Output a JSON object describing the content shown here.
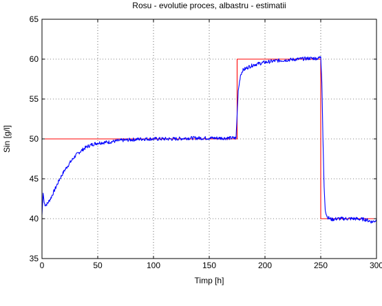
{
  "chart_data": {
    "type": "line",
    "title": "Rosu - evolutie proces, albastru - estimatii",
    "xlabel": "Timp [h]",
    "ylabel": "Sin [g/l]",
    "xlim": [
      0,
      300
    ],
    "ylim": [
      35,
      65
    ],
    "xticks": [
      0,
      50,
      100,
      150,
      200,
      250,
      300
    ],
    "yticks": [
      35,
      40,
      45,
      50,
      55,
      60,
      65
    ],
    "grid": "dotted",
    "series": [
      {
        "color": "#ff0000",
        "style": "step",
        "x": [
          0,
          175,
          175,
          250,
          250,
          300
        ],
        "y": [
          50,
          50,
          60,
          60,
          40,
          40
        ]
      },
      {
        "color": "#0000ff",
        "style": "noisy",
        "x": [
          0,
          1,
          2,
          3,
          5,
          8,
          12,
          16,
          20,
          25,
          30,
          35,
          40,
          45,
          50,
          60,
          70,
          80,
          90,
          100,
          110,
          120,
          130,
          140,
          150,
          160,
          170,
          174,
          175,
          176,
          178,
          180,
          185,
          190,
          200,
          210,
          220,
          230,
          240,
          248,
          250,
          251,
          252,
          253,
          254,
          255,
          256,
          258,
          260,
          265,
          270,
          280,
          290,
          296,
          300
        ],
        "y": [
          40.5,
          43.2,
          42.0,
          41.7,
          41.9,
          42.6,
          43.8,
          45.0,
          46.0,
          47.0,
          47.9,
          48.5,
          49.0,
          49.3,
          49.5,
          49.6,
          49.8,
          49.9,
          50.0,
          50.0,
          50.0,
          50.0,
          50.1,
          50.1,
          50.1,
          50.1,
          50.1,
          50.1,
          53.0,
          56.0,
          58.0,
          58.6,
          59.0,
          59.3,
          59.6,
          59.8,
          59.9,
          60.0,
          60.1,
          60.1,
          60.3,
          57.0,
          50.0,
          44.0,
          41.2,
          40.6,
          40.2,
          40.0,
          39.9,
          40.0,
          40.0,
          40.0,
          39.9,
          39.6,
          39.8
        ]
      }
    ]
  }
}
